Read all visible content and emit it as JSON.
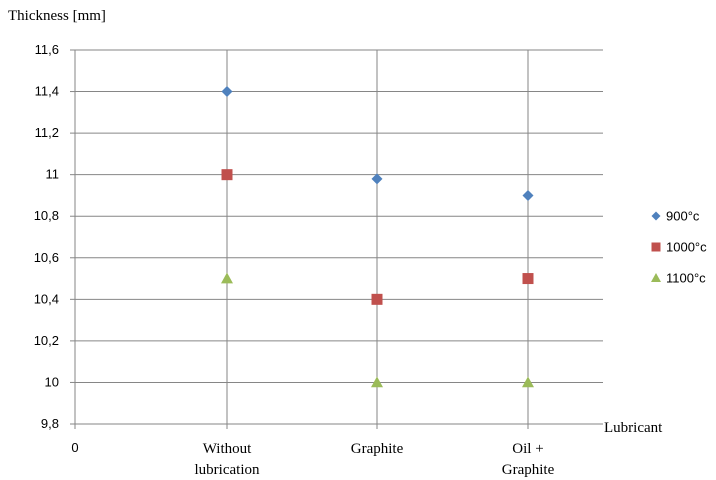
{
  "chart_data": {
    "type": "scatter",
    "ylabel": "Thickness  [mm]",
    "xlabel": "Lubricant",
    "x_origin_label": "0",
    "categories": [
      [
        "Without",
        "lubrication"
      ],
      [
        "Graphite"
      ],
      [
        "Oil +",
        "Graphite"
      ]
    ],
    "ylim": [
      9.8,
      11.6
    ],
    "yticks": [
      "9,8",
      "10",
      "10,2",
      "10,4",
      "10,6",
      "10,8",
      "11",
      "11,2",
      "11,4",
      "11,6"
    ],
    "grid": true,
    "legend_position": "right",
    "series": [
      {
        "name": "900°c",
        "marker": "diamond",
        "color": "#4f81bd",
        "values": [
          11.4,
          10.98,
          10.9
        ]
      },
      {
        "name": "1000°c",
        "marker": "square",
        "color": "#c0504d",
        "values": [
          11.0,
          10.4,
          10.5
        ]
      },
      {
        "name": "1100°c",
        "marker": "triangle",
        "color": "#9bbb59",
        "values": [
          10.5,
          10.0,
          10.0
        ]
      }
    ]
  }
}
